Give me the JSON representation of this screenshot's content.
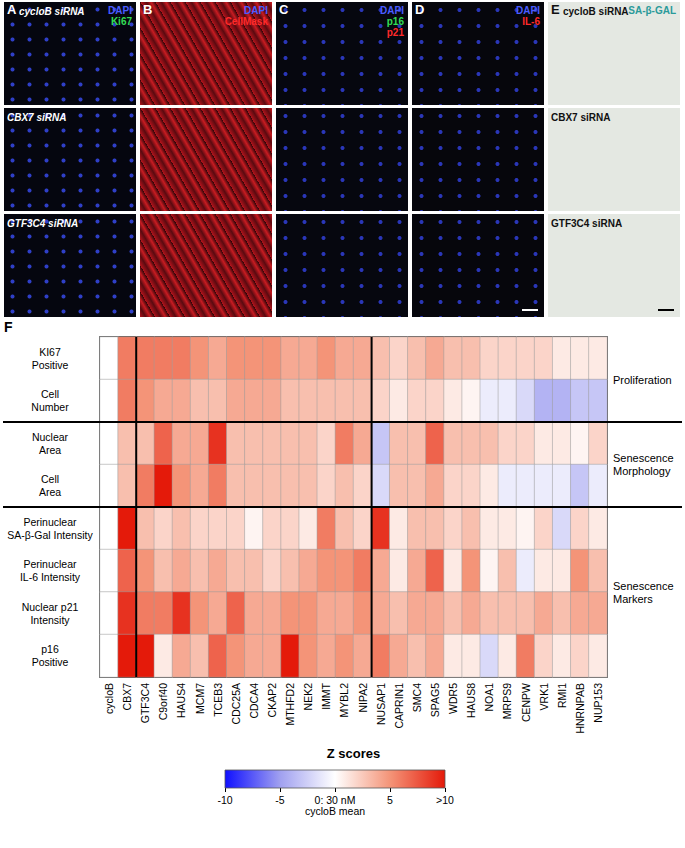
{
  "panels": [
    {
      "label": "A",
      "siRNA_labels": [
        "cycloB siRNA",
        "CBX7 siRNA",
        "GTF3C4 siRNA"
      ],
      "stains": [
        {
          "text": "DAPI",
          "color": "#4a5cff"
        },
        {
          "text": "Ki67",
          "color": "#33dd55"
        }
      ]
    },
    {
      "label": "B",
      "stains": [
        {
          "text": "DAPI",
          "color": "#4a5cff"
        },
        {
          "text": "CellMask",
          "color": "#ff2a2a"
        }
      ]
    },
    {
      "label": "C",
      "stains": [
        {
          "text": "DAPI",
          "color": "#4a5cff"
        },
        {
          "text": "p16",
          "color": "#33dd55"
        },
        {
          "text": "p21",
          "color": "#ff2a2a"
        }
      ]
    },
    {
      "label": "D",
      "stains": [
        {
          "text": "DAPI",
          "color": "#4a5cff"
        },
        {
          "text": "IL-6",
          "color": "#ff2a2a"
        }
      ]
    },
    {
      "label": "E",
      "siRNA_labels": [
        "cycloB siRNA",
        "CBX7 siRNA",
        "GTF3C4 siRNA"
      ],
      "stains": [
        {
          "text": "SA-β-GAL",
          "color": "#2a9a9a"
        }
      ]
    }
  ],
  "chart_data": {
    "type": "heatmap",
    "panel_label": "F",
    "x_label": "Z scores",
    "categories": [
      "cycloB",
      "CBX7",
      "GTF3C4",
      "C9orf40",
      "HAUS4",
      "MCM7",
      "TCEB3",
      "CDC25A",
      "CDCA4",
      "CKAP2",
      "MTHFD2",
      "NEK2",
      "IMMT",
      "MYBL2",
      "NIPA2",
      "NUSAP1",
      "CAPRIN1",
      "SMC4",
      "SPAG5",
      "WDR5",
      "HAUS8",
      "NOA1",
      "MRPS9",
      "CENPW",
      "VRK1",
      "RMI1",
      "HNRNPAB",
      "NUP153"
    ],
    "rows": [
      "KI67\nPositive",
      "Cell\nNumber",
      "Nuclear\nArea",
      "Cell\nArea",
      "Perinuclear\nSA-β-Gal Intensity",
      "Perinuclear\nIL-6 Intensity",
      "Nuclear p21\nIntensity",
      "p16\nPositive"
    ],
    "row_groups": [
      {
        "label": "Proliferation",
        "first": 0,
        "last": 1
      },
      {
        "label": "Senescence\nMorphology",
        "first": 2,
        "last": 3
      },
      {
        "label": "Senescence\nMarkers",
        "first": 4,
        "last": 7
      }
    ],
    "column_groups": [
      {
        "first": 0,
        "last": 1
      },
      {
        "first": 2,
        "last": 14
      },
      {
        "first": 15,
        "last": 27
      }
    ],
    "values": [
      [
        0,
        6,
        6,
        6,
        6,
        5,
        4,
        5,
        5,
        5,
        4,
        4,
        5,
        4,
        4,
        3,
        2,
        3,
        4,
        3,
        3,
        2,
        2,
        2,
        2,
        1,
        1,
        1
      ],
      [
        0,
        6,
        5,
        4,
        4,
        3,
        3,
        4,
        4,
        4,
        3,
        3,
        3,
        3,
        3,
        2,
        1,
        2,
        2,
        1,
        0.5,
        -1,
        -1,
        -2,
        -4,
        -4,
        -3,
        -3
      ],
      [
        0,
        3,
        3,
        7,
        4,
        4,
        9,
        3,
        3,
        3,
        3,
        3,
        2,
        6,
        4,
        -3,
        3,
        3,
        7,
        3,
        3,
        3,
        2,
        2,
        1,
        1,
        0.5,
        2
      ],
      [
        0,
        3,
        6,
        10,
        5,
        4,
        6,
        3,
        3,
        3,
        3,
        3,
        2,
        3,
        2,
        -2,
        3,
        3,
        4,
        2,
        2,
        1,
        -1,
        -1,
        -1,
        -1,
        -3,
        -1
      ],
      [
        0,
        11,
        3,
        2,
        3,
        2,
        2,
        2,
        0.5,
        2,
        2,
        1,
        6,
        3,
        2,
        9,
        1,
        3,
        3,
        2,
        3,
        1,
        1,
        0.5,
        2,
        -2,
        2,
        1
      ],
      [
        0,
        7,
        5,
        3,
        4,
        3,
        4,
        3,
        3,
        2,
        3,
        4,
        5,
        5,
        6,
        4,
        1,
        4,
        7,
        1,
        5,
        0.5,
        3,
        -1,
        1,
        1,
        5,
        3
      ],
      [
        0,
        9,
        6,
        6,
        9,
        5,
        4,
        7,
        4,
        4,
        5,
        5,
        4,
        4,
        5,
        4,
        3,
        4,
        4,
        3,
        4,
        3,
        3,
        3,
        4,
        3,
        4,
        4
      ],
      [
        0,
        10,
        11,
        1,
        4,
        3,
        7,
        5,
        4,
        4,
        10,
        5,
        4,
        5,
        4,
        6,
        4,
        3,
        4,
        1,
        1,
        -2,
        1,
        6,
        2,
        1,
        2,
        1
      ]
    ],
    "colorbar": {
      "range": [
        -10,
        10
      ],
      "ticks": [
        -10,
        -5,
        {
          "value": 0,
          "label": "0: 30 nM\ncycloB mean"
        },
        5,
        {
          "value": 10,
          "label": ">10"
        }
      ],
      "colors": [
        "#1010ff",
        "#a0a0f0",
        "#ffffff",
        "#f49478",
        "#e41a0a"
      ]
    }
  }
}
